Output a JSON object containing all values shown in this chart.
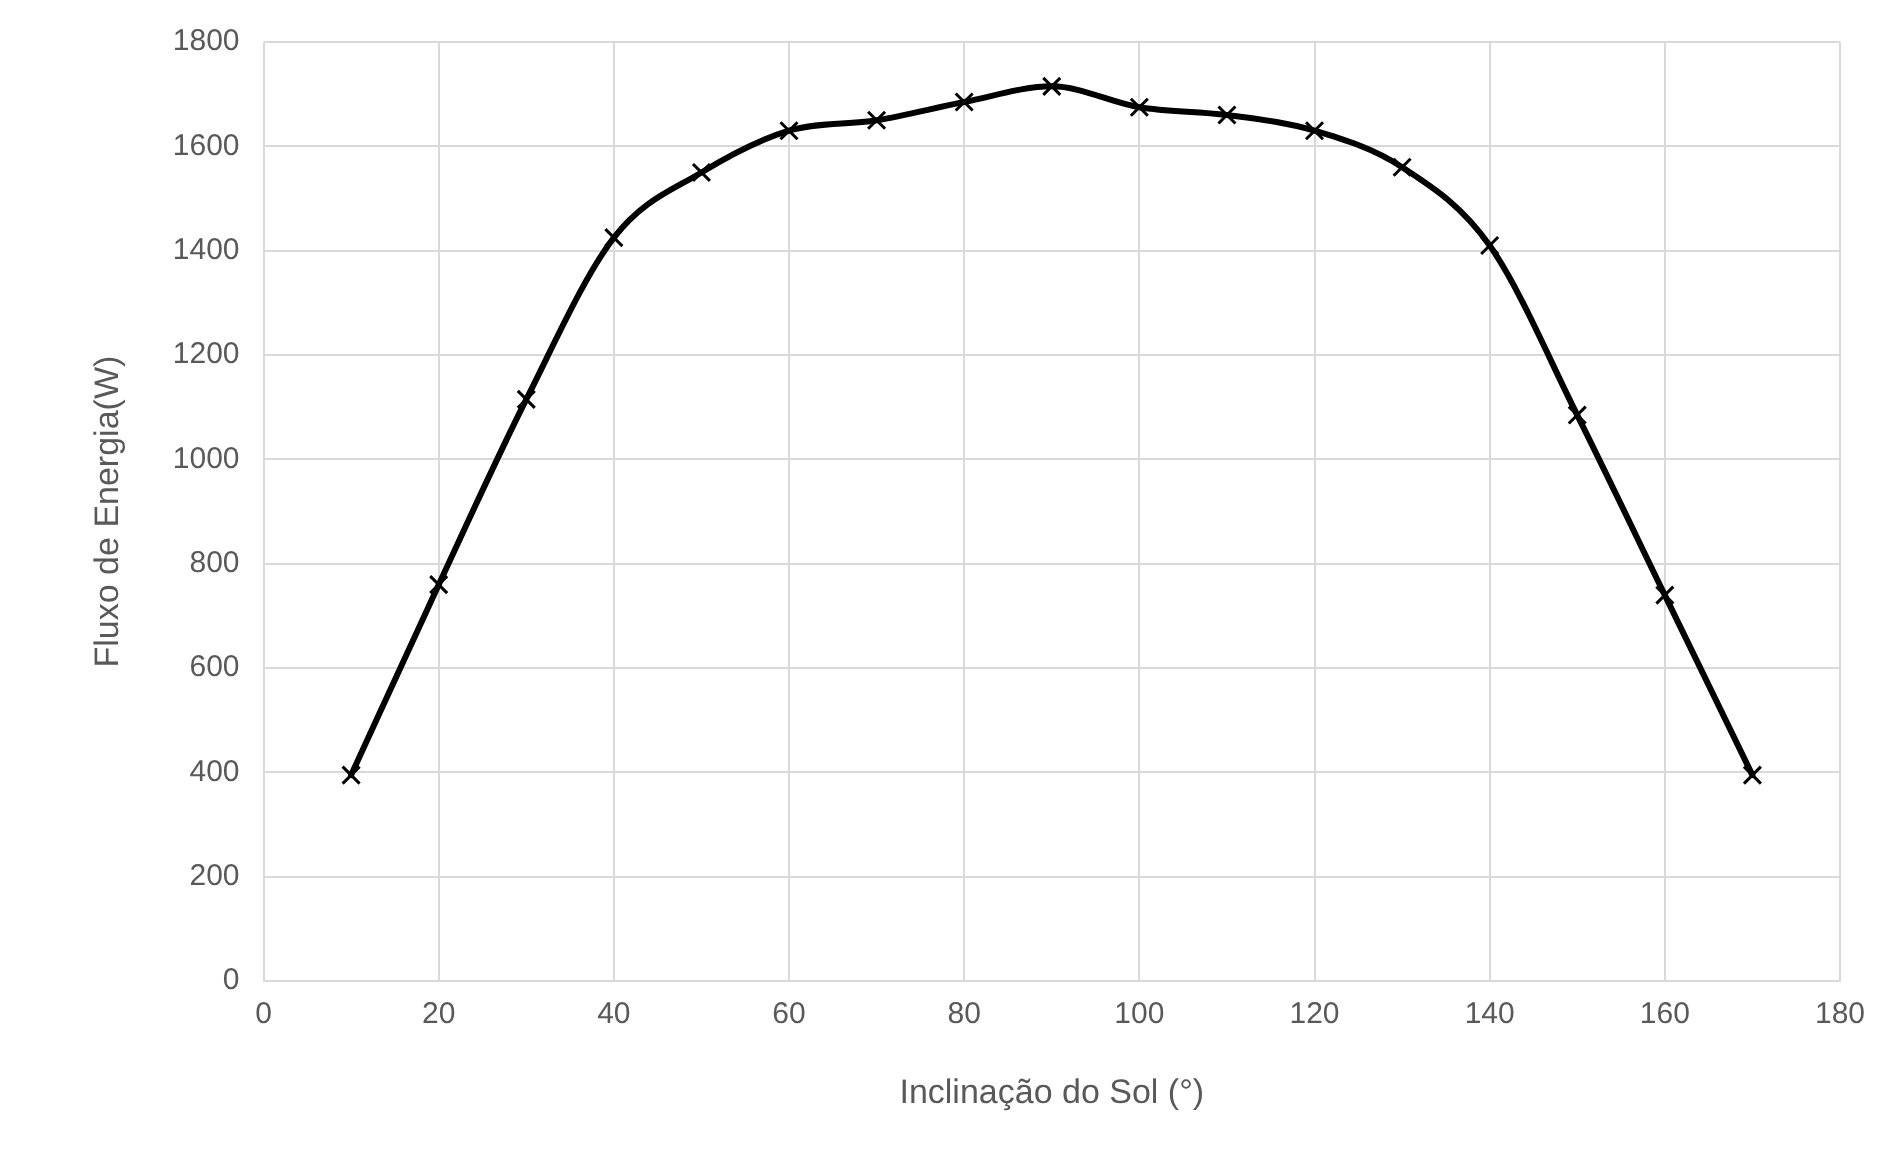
{
  "chart_data": {
    "type": "line",
    "xlabel": "Inclinação do Sol (°)",
    "ylabel": "Fluxo de Energia(W)",
    "x": [
      10,
      20,
      30,
      40,
      50,
      60,
      70,
      80,
      90,
      100,
      110,
      120,
      130,
      140,
      150,
      160,
      170
    ],
    "series": [
      {
        "color": "#000000",
        "values": [
          395,
          760,
          1115,
          1425,
          1550,
          1630,
          1650,
          1685,
          1715,
          1675,
          1660,
          1630,
          1560,
          1410,
          1085,
          740,
          395
        ]
      }
    ],
    "xlim": [
      0,
      180
    ],
    "xticks": [
      0,
      20,
      40,
      60,
      80,
      100,
      120,
      140,
      160,
      180
    ],
    "ylim": [
      0,
      1800
    ],
    "yticks": [
      0,
      200,
      400,
      600,
      800,
      1000,
      1200,
      1400,
      1600,
      1800
    ],
    "grid": true,
    "legend": false,
    "marker": "cross",
    "line_style": "solid"
  }
}
